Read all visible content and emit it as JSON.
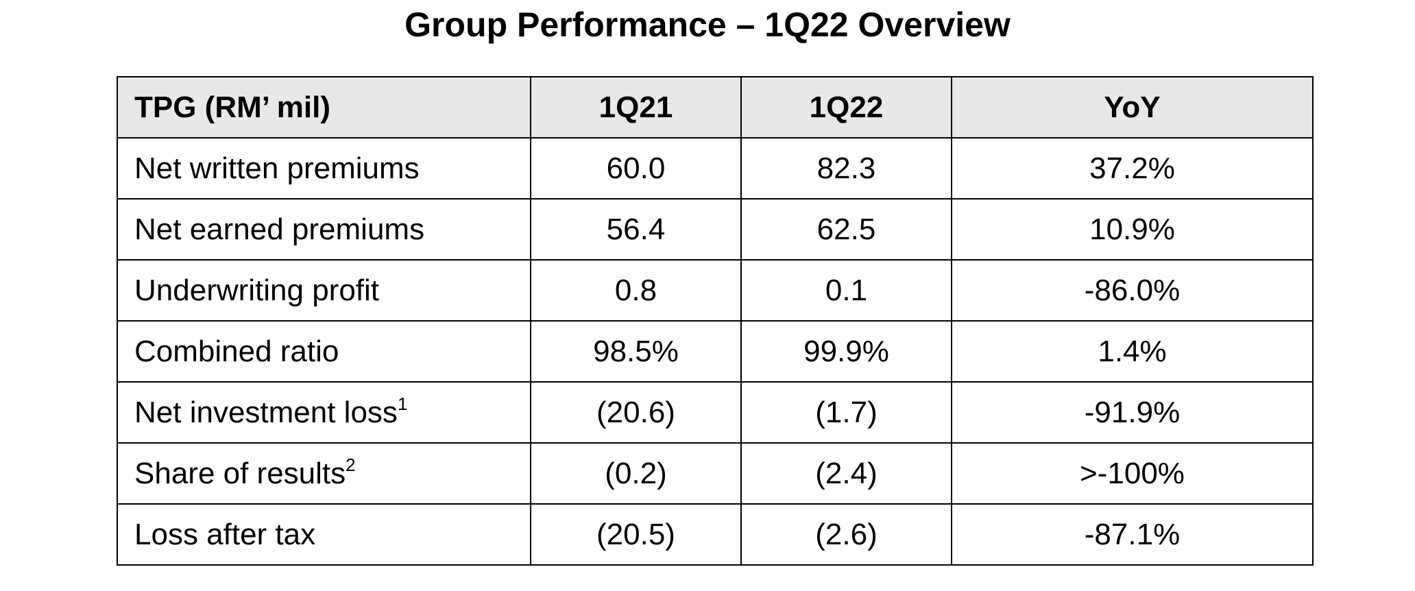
{
  "title": "Group Performance – 1Q22 Overview",
  "table": {
    "headers": [
      "TPG (RM’ mil)",
      "1Q21",
      "1Q22",
      "YoY"
    ],
    "rows": [
      {
        "label": "Net written premiums",
        "sup": "",
        "q1_21": "60.0",
        "q1_22": "82.3",
        "yoy": "37.2%"
      },
      {
        "label": "Net earned premiums",
        "sup": "",
        "q1_21": "56.4",
        "q1_22": "62.5",
        "yoy": "10.9%"
      },
      {
        "label": "Underwriting profit",
        "sup": "",
        "q1_21": "0.8",
        "q1_22": "0.1",
        "yoy": "-86.0%"
      },
      {
        "label": "Combined ratio",
        "sup": "",
        "q1_21": "98.5%",
        "q1_22": "99.9%",
        "yoy": "1.4%"
      },
      {
        "label": "Net investment loss",
        "sup": "1",
        "q1_21": "(20.6)",
        "q1_22": "(1.7)",
        "yoy": "-91.9%"
      },
      {
        "label": "Share of results",
        "sup": "2",
        "q1_21": "(0.2)",
        "q1_22": "(2.4)",
        "yoy": ">-100%"
      },
      {
        "label": "Loss after tax",
        "sup": "",
        "q1_21": "(20.5)",
        "q1_22": "(2.6)",
        "yoy": "-87.1%"
      }
    ]
  }
}
